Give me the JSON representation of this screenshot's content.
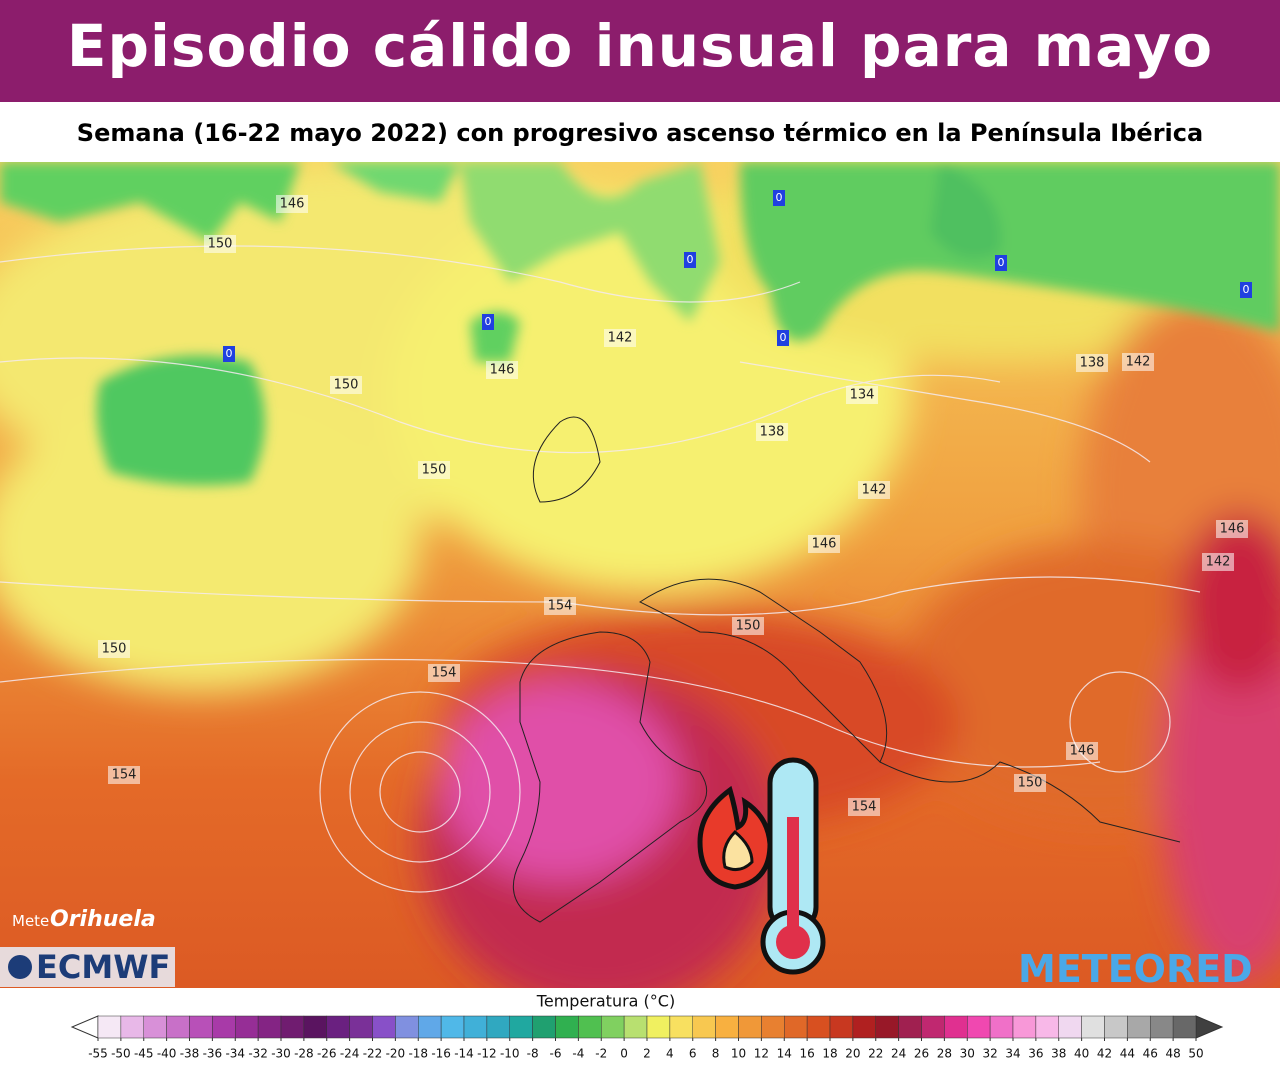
{
  "header": {
    "title": "Episodio cálido inusual para mayo",
    "subtitle": "Semana (16-22 mayo 2022) con progresivo ascenso térmico en la Península Ibérica"
  },
  "map": {
    "contour_labels": [
      150,
      146,
      150,
      146,
      142,
      150,
      138,
      142,
      134,
      138,
      142,
      146,
      142,
      146,
      154,
      150,
      150,
      154,
      154,
      146,
      150,
      154
    ],
    "zero_labels": [
      0,
      0,
      0,
      0,
      0,
      0,
      0
    ],
    "logos": {
      "meteo": "Mete",
      "orihuela": "Orihuela",
      "ecmwf": "ECMWF",
      "meteored": "METEORED"
    }
  },
  "legend": {
    "title": "Temperatura (°C)",
    "ticks": [
      -55,
      -50,
      -45,
      -40,
      -38,
      -36,
      -34,
      -32,
      -30,
      -28,
      -26,
      -24,
      -22,
      -20,
      -18,
      -16,
      -14,
      -12,
      -10,
      -8,
      -6,
      -4,
      -2,
      0,
      2,
      4,
      6,
      8,
      10,
      12,
      14,
      16,
      18,
      20,
      22,
      24,
      26,
      28,
      30,
      32,
      34,
      36,
      38,
      40,
      42,
      44,
      46,
      48,
      50
    ],
    "colors": [
      "#f5e8f5",
      "#e8b8e8",
      "#d890d8",
      "#c870c8",
      "#b850b8",
      "#a83aa8",
      "#962e96",
      "#842484",
      "#701c70",
      "#5a1460",
      "#6a2080",
      "#7a3098",
      "#8850c8",
      "#8090e0",
      "#60a8e8",
      "#50b8e8",
      "#40b0d8",
      "#30a8c0",
      "#20a8a0",
      "#20a070",
      "#30b050",
      "#50c050",
      "#80d060",
      "#b8e070",
      "#f0f060",
      "#f8e060",
      "#f8c850",
      "#f8b040",
      "#f09838",
      "#e88030",
      "#e06828",
      "#d85020",
      "#c83820",
      "#b02020",
      "#981828",
      "#a02050",
      "#c02870",
      "#e03090",
      "#f048b0",
      "#f070c8",
      "#f898d8",
      "#f8b8e8",
      "#f0d8f0",
      "#e0e0e0",
      "#c8c8c8",
      "#a8a8a8",
      "#888888",
      "#686868"
    ],
    "low_color": "#ffffff",
    "high_color": "#404040"
  }
}
